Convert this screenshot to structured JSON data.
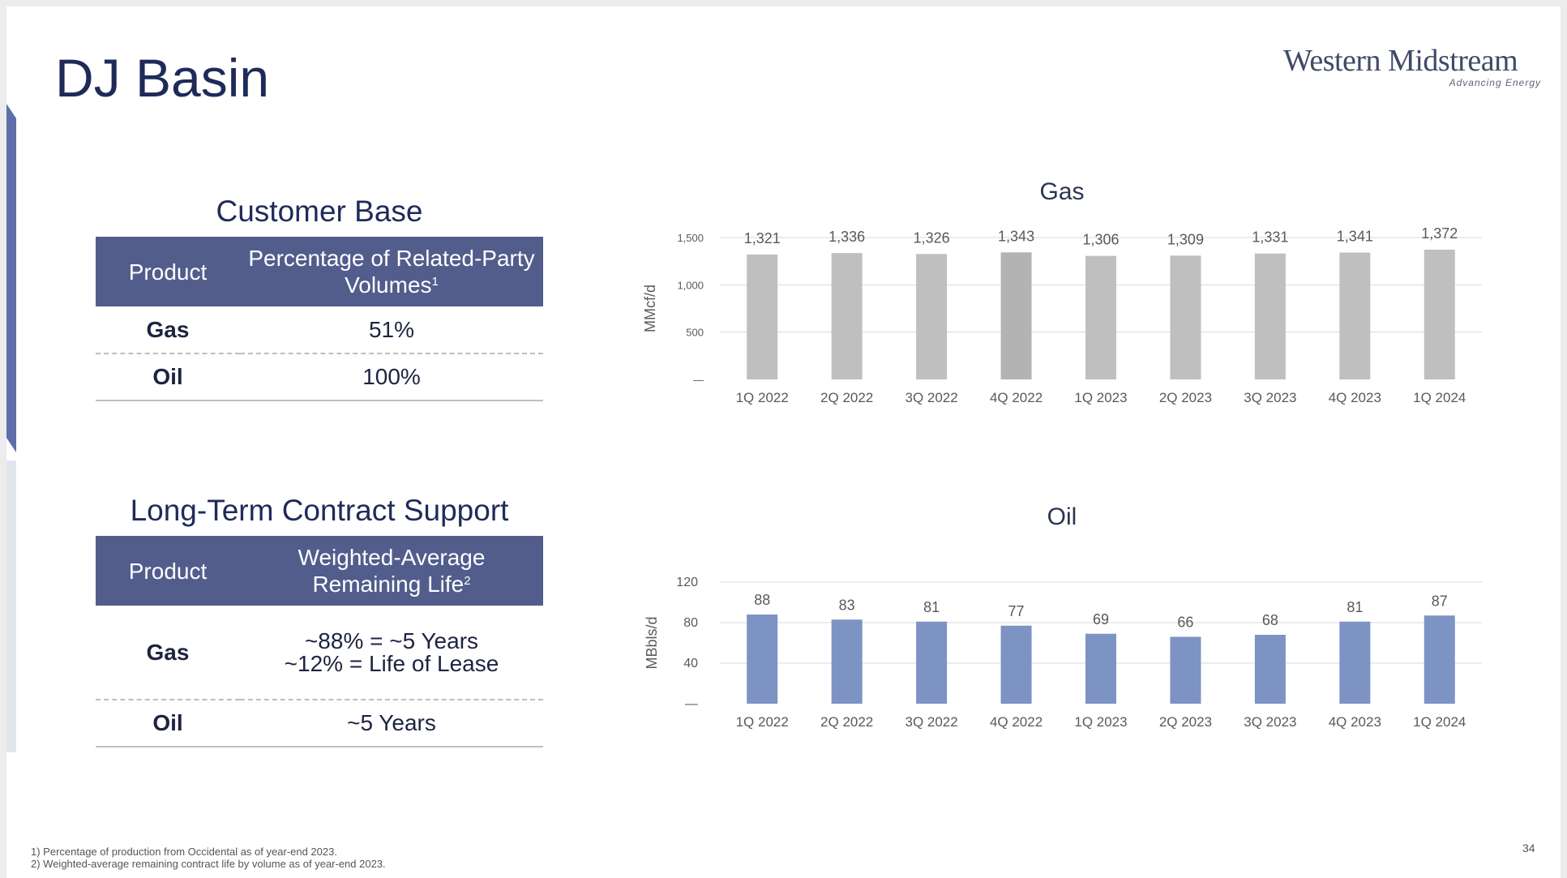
{
  "slide": {
    "title": "DJ Basin",
    "page_number": "34"
  },
  "logo": {
    "name": "Western Midstream",
    "tagline": "Advancing Energy"
  },
  "customer_base": {
    "title": "Customer Base",
    "headers": [
      "Product",
      "Percentage of Related-Party Volumes"
    ],
    "header_footnote": "1",
    "rows": [
      {
        "product": "Gas",
        "value": "51%"
      },
      {
        "product": "Oil",
        "value": "100%"
      }
    ]
  },
  "contract_support": {
    "title": "Long-Term Contract Support",
    "header_product": "Product",
    "header_line1": "Weighted-Average",
    "header_line2": "Remaining Life",
    "header_footnote": "2",
    "rows": [
      {
        "product": "Gas",
        "line1": "~88% = ~5 Years",
        "line2": "~12% = Life of Lease"
      },
      {
        "product": "Oil",
        "line1": "~5 Years"
      }
    ]
  },
  "footnotes": [
    "1) Percentage of production from Occidental as of year-end 2023.",
    "2) Weighted-average remaining contract life by volume as of year-end 2023."
  ],
  "colors": {
    "navy": "#1f2a5a",
    "header_bg": "#525d8c",
    "gas_bar": "#bfbfbf",
    "oil_bar": "#7d93c3"
  },
  "chart_data": [
    {
      "type": "bar",
      "title": "Gas",
      "ylabel": "MMcf/d",
      "categories": [
        "1Q 2022",
        "2Q 2022",
        "3Q 2022",
        "4Q 2022",
        "1Q 2023",
        "2Q 2023",
        "3Q 2023",
        "4Q 2023",
        "1Q 2024"
      ],
      "values": [
        1321,
        1336,
        1326,
        1343,
        1306,
        1309,
        1331,
        1341,
        1372
      ],
      "value_labels": [
        "1,321",
        "1,336",
        "1,326",
        "1,343",
        "1,306",
        "1,309",
        "1,331",
        "1,341",
        "1,372"
      ],
      "yticks": [
        "—",
        "500",
        "1,000",
        "1,500"
      ],
      "ylim": [
        0,
        1500
      ],
      "grid": true
    },
    {
      "type": "bar",
      "title": "Oil",
      "ylabel": "MBbls/d",
      "categories": [
        "1Q 2022",
        "2Q 2022",
        "3Q 2022",
        "4Q 2022",
        "1Q 2023",
        "2Q 2023",
        "3Q 2023",
        "4Q 2023",
        "1Q 2024"
      ],
      "values": [
        88,
        83,
        81,
        77,
        69,
        66,
        68,
        81,
        87
      ],
      "value_labels": [
        "88",
        "83",
        "81",
        "77",
        "69",
        "66",
        "68",
        "81",
        "87"
      ],
      "yticks": [
        "—",
        "40",
        "80",
        "120"
      ],
      "ylim": [
        0,
        120
      ],
      "grid": true
    }
  ]
}
